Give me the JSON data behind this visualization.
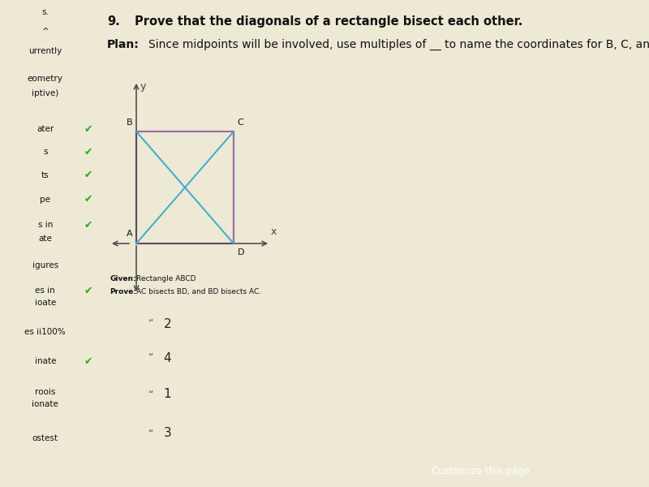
{
  "title_num": "9.",
  "title": "Prove that the diagonals of a rectangle bisect each other.",
  "plan_label": "Plan:",
  "plan_text": "Since midpoints will be involved, use multiples of __ to name the coordinates for B, C, and D.",
  "rect_color": "#9B6FA8",
  "diag_color": "#3AACCC",
  "label_A": "A",
  "label_B": "B",
  "label_C": "C",
  "label_D": "D",
  "given_label": "Given:",
  "given_text": "Rectangle ABCD",
  "prove_label": "Prove:",
  "prove_text": "AC bisects BD, and BD bisects AC.",
  "numbered_items": [
    "2",
    "4",
    "1",
    "3"
  ],
  "bg_color": "#EDE9D5",
  "left_panel_color": "#B8C8D8",
  "axis_color": "#444444",
  "sidebar_texts": [
    "s.",
    "^",
    "urrently",
    "eometry",
    "iptive)",
    "ater",
    "s",
    "ts",
    "pe",
    "s in",
    "ate",
    "igures",
    "es in",
    "ioate",
    "es ii100%",
    "inate",
    "roois",
    "ionate",
    "ostest"
  ],
  "sidebar_checks": [
    false,
    false,
    false,
    false,
    false,
    true,
    true,
    true,
    true,
    true,
    false,
    false,
    true,
    false,
    false,
    true,
    false,
    false,
    false
  ],
  "customize_text": "Customize this page"
}
